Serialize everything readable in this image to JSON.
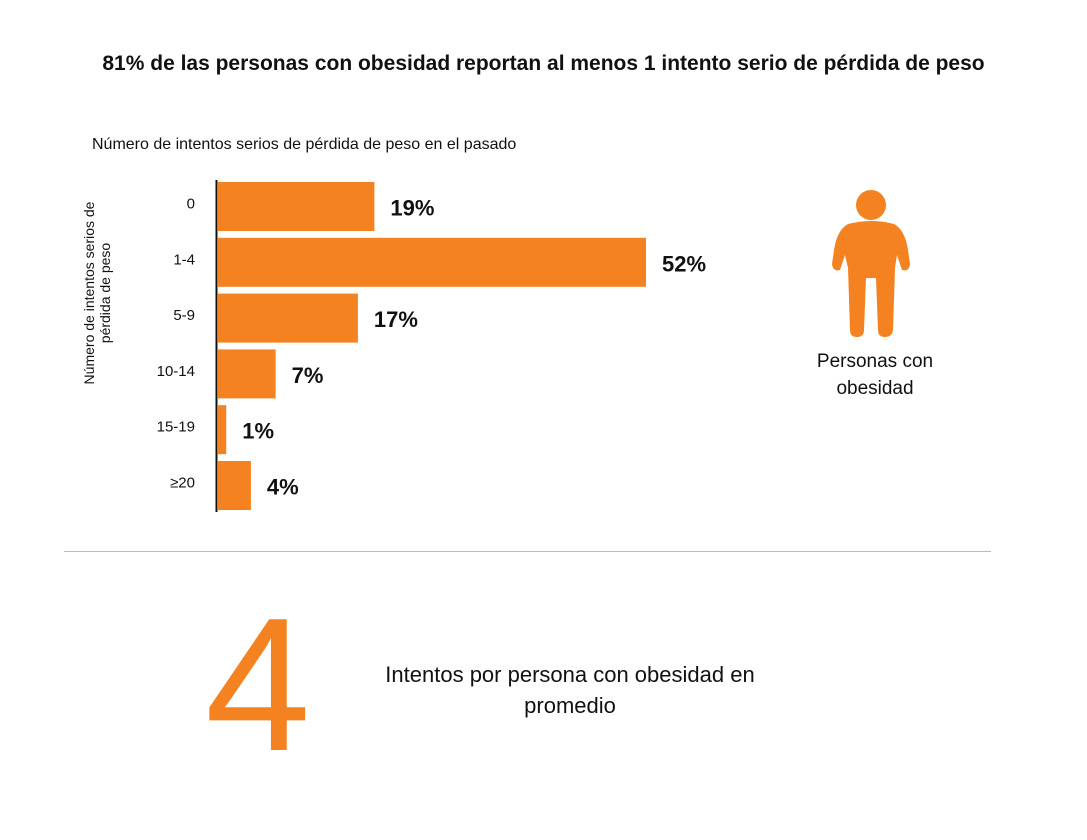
{
  "title": "81% de las personas con obesidad reportan al menos 1 intento serio de pérdida de peso",
  "chart_data": {
    "type": "bar",
    "orientation": "horizontal",
    "title": "Número de intentos serios de pérdida de peso en el pasado",
    "ylabel": "Número de intentos serios de pérdida de peso",
    "xlabel": "",
    "categories": [
      "0",
      "1-4",
      "5-9",
      "10-14",
      "15-19",
      "≥20"
    ],
    "values": [
      19,
      52,
      17,
      7,
      1,
      4
    ],
    "data_labels": [
      "19%",
      "52%",
      "17%",
      "7%",
      "1%",
      "4%"
    ],
    "unit": "%",
    "xlim": [
      0,
      52
    ],
    "grid": false,
    "bar_color": "#f58220"
  },
  "person": {
    "icon": "person-icon",
    "label": "Personas con obesidad",
    "color": "#f58220"
  },
  "summary": {
    "number": "4",
    "text": "Intentos por persona con obesidad en promedio"
  }
}
